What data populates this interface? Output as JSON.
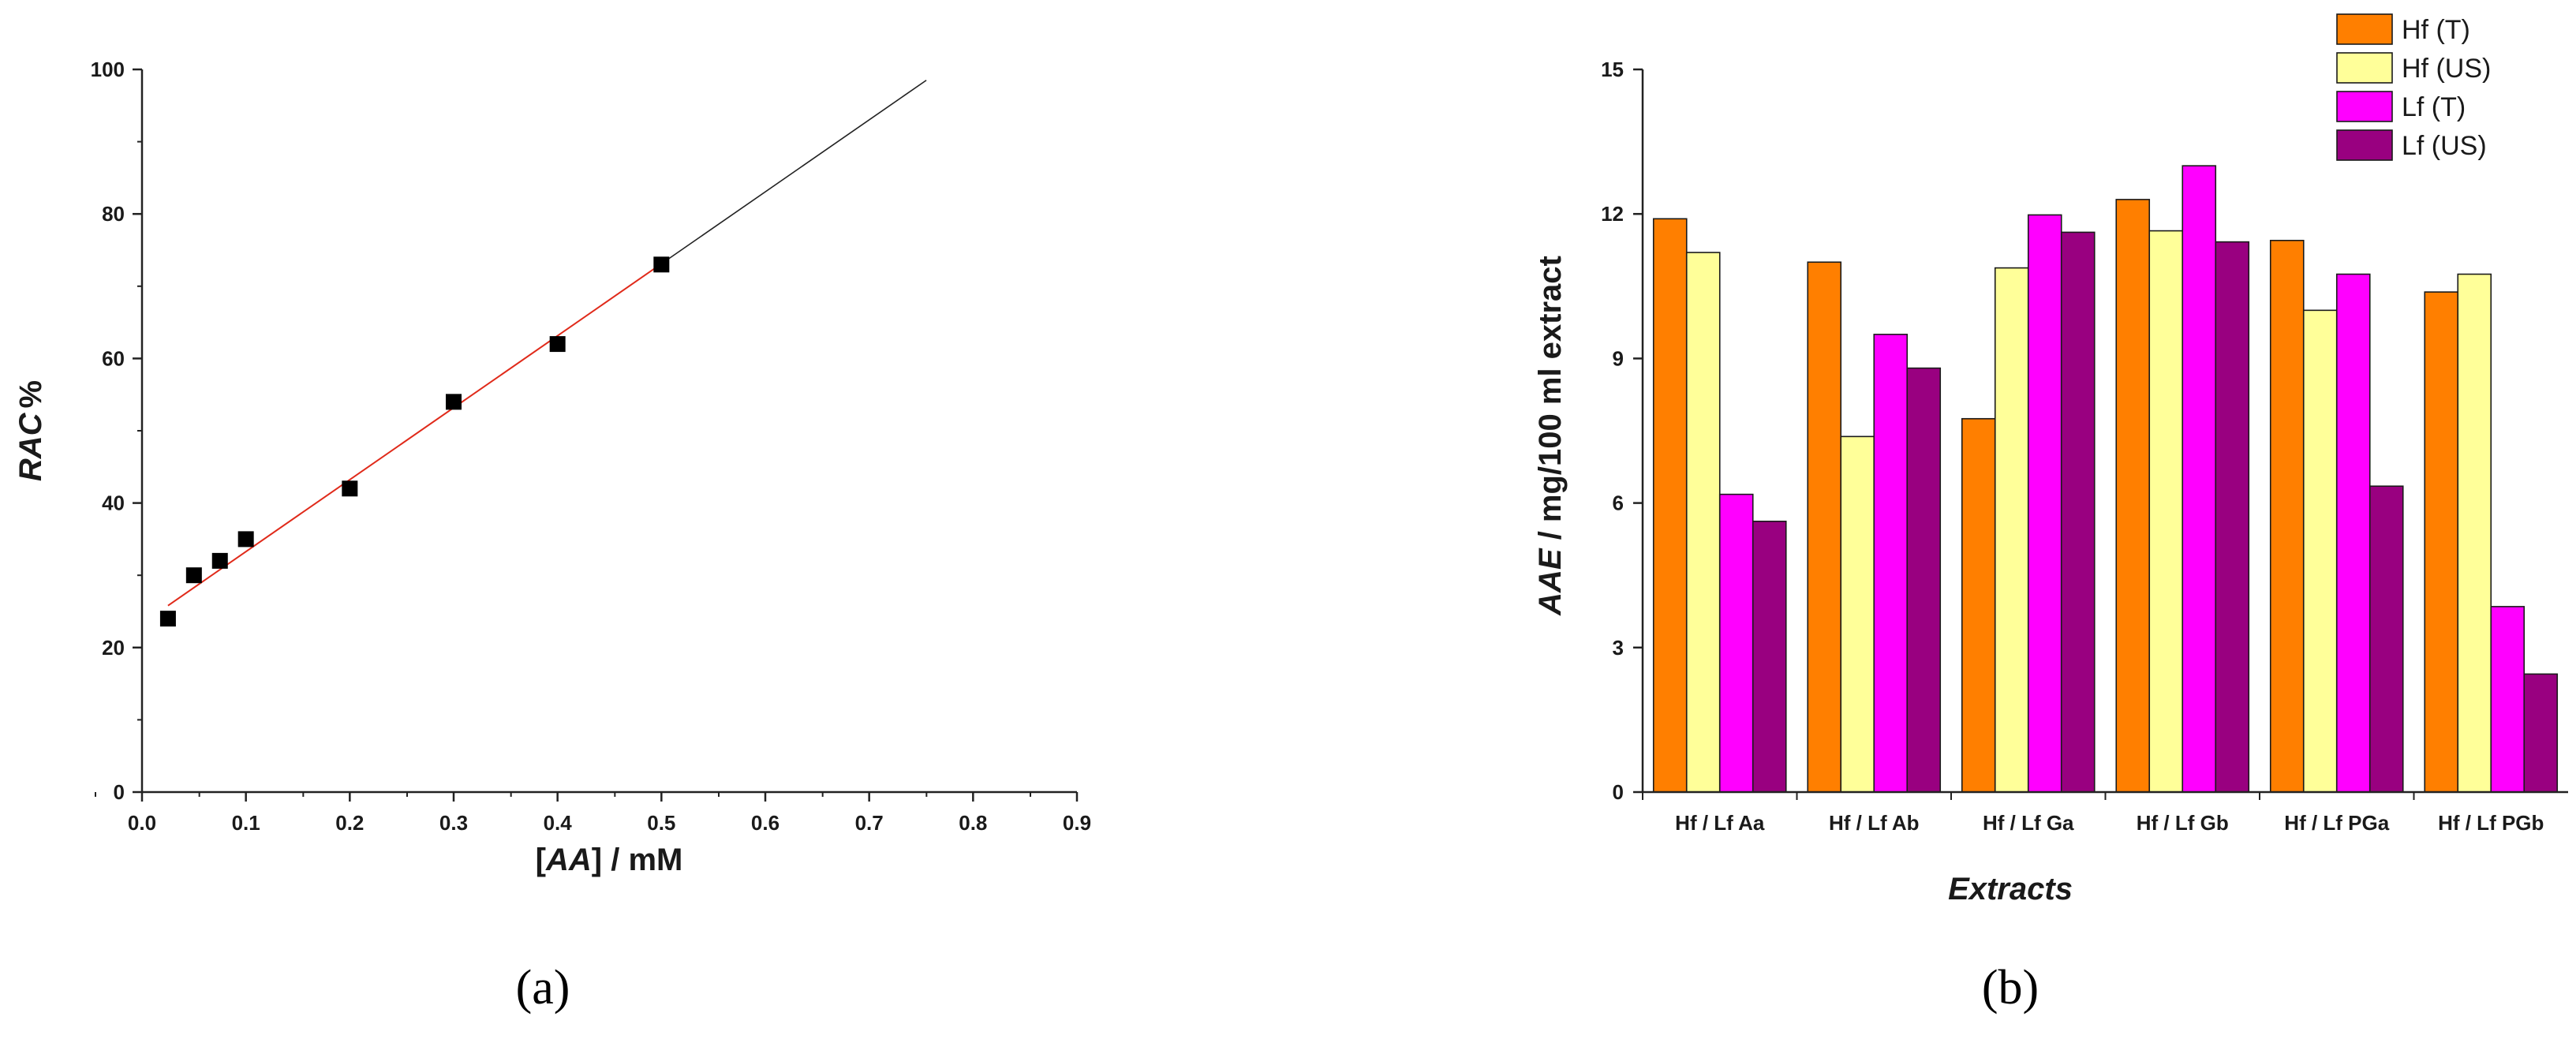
{
  "chart_data": [
    {
      "type": "scatter",
      "panel_label": "(a)",
      "ylabel_italic": "RAC",
      "ylabel_suffix": "%",
      "xlabel_prefix": "[",
      "xlabel_italic": "AA",
      "xlabel_suffix": "] / mM",
      "xlim": [
        0.0,
        0.9
      ],
      "ylim": [
        0,
        100
      ],
      "xticks": [
        "0.0",
        "0.1",
        "0.2",
        "0.3",
        "0.4",
        "0.5",
        "0.6",
        "0.7",
        "0.8",
        "0.9"
      ],
      "yticks": [
        "0",
        "20",
        "40",
        "60",
        "80",
        "100"
      ],
      "grid": false,
      "points": [
        {
          "x": 0.025,
          "y": 24
        },
        {
          "x": 0.05,
          "y": 30
        },
        {
          "x": 0.075,
          "y": 32
        },
        {
          "x": 0.1,
          "y": 35
        },
        {
          "x": 0.2,
          "y": 42
        },
        {
          "x": 0.3,
          "y": 54
        },
        {
          "x": 0.4,
          "y": 62
        },
        {
          "x": 0.5,
          "y": 73
        }
      ],
      "fit_line": {
        "x_start": 0.025,
        "y_start": 25.8,
        "x_end": 0.755,
        "y_end": 98.5,
        "fitted_x_end": 0.5,
        "fitted_color": "#e02a1a",
        "extrapolated_color": "#222222"
      },
      "marker_color": "#000000"
    },
    {
      "type": "bar",
      "panel_label": "(b)",
      "ylabel_italic": "AAE",
      "ylabel_suffix": " / mg/100 ml extract",
      "xlabel": "Extracts",
      "ylim": [
        0,
        15
      ],
      "yticks": [
        "0",
        "3",
        "6",
        "9",
        "12",
        "15"
      ],
      "grid": false,
      "legend_position": "top-right",
      "categories": [
        "Hf / Lf Aa",
        "Hf / Lf Ab",
        "Hf / Lf Ga",
        "Hf / Lf Gb",
        "Hf / Lf PGa",
        "Hf / Lf PGb"
      ],
      "series": [
        {
          "name": "Hf (T)",
          "color": "#ff7f00",
          "values": [
            11.9,
            11.0,
            7.75,
            12.3,
            11.45,
            10.38
          ]
        },
        {
          "name": "Hf (US)",
          "color": "#ffff99",
          "values": [
            11.2,
            7.38,
            10.88,
            11.65,
            10.0,
            10.75
          ]
        },
        {
          "name": "Lf (T)",
          "color": "#ff00ff",
          "values": [
            6.18,
            9.5,
            11.98,
            13.0,
            10.75,
            3.85
          ]
        },
        {
          "name": "Lf (US)",
          "color": "#990080",
          "values": [
            5.62,
            8.8,
            11.62,
            11.42,
            6.35,
            2.45
          ]
        }
      ]
    }
  ]
}
